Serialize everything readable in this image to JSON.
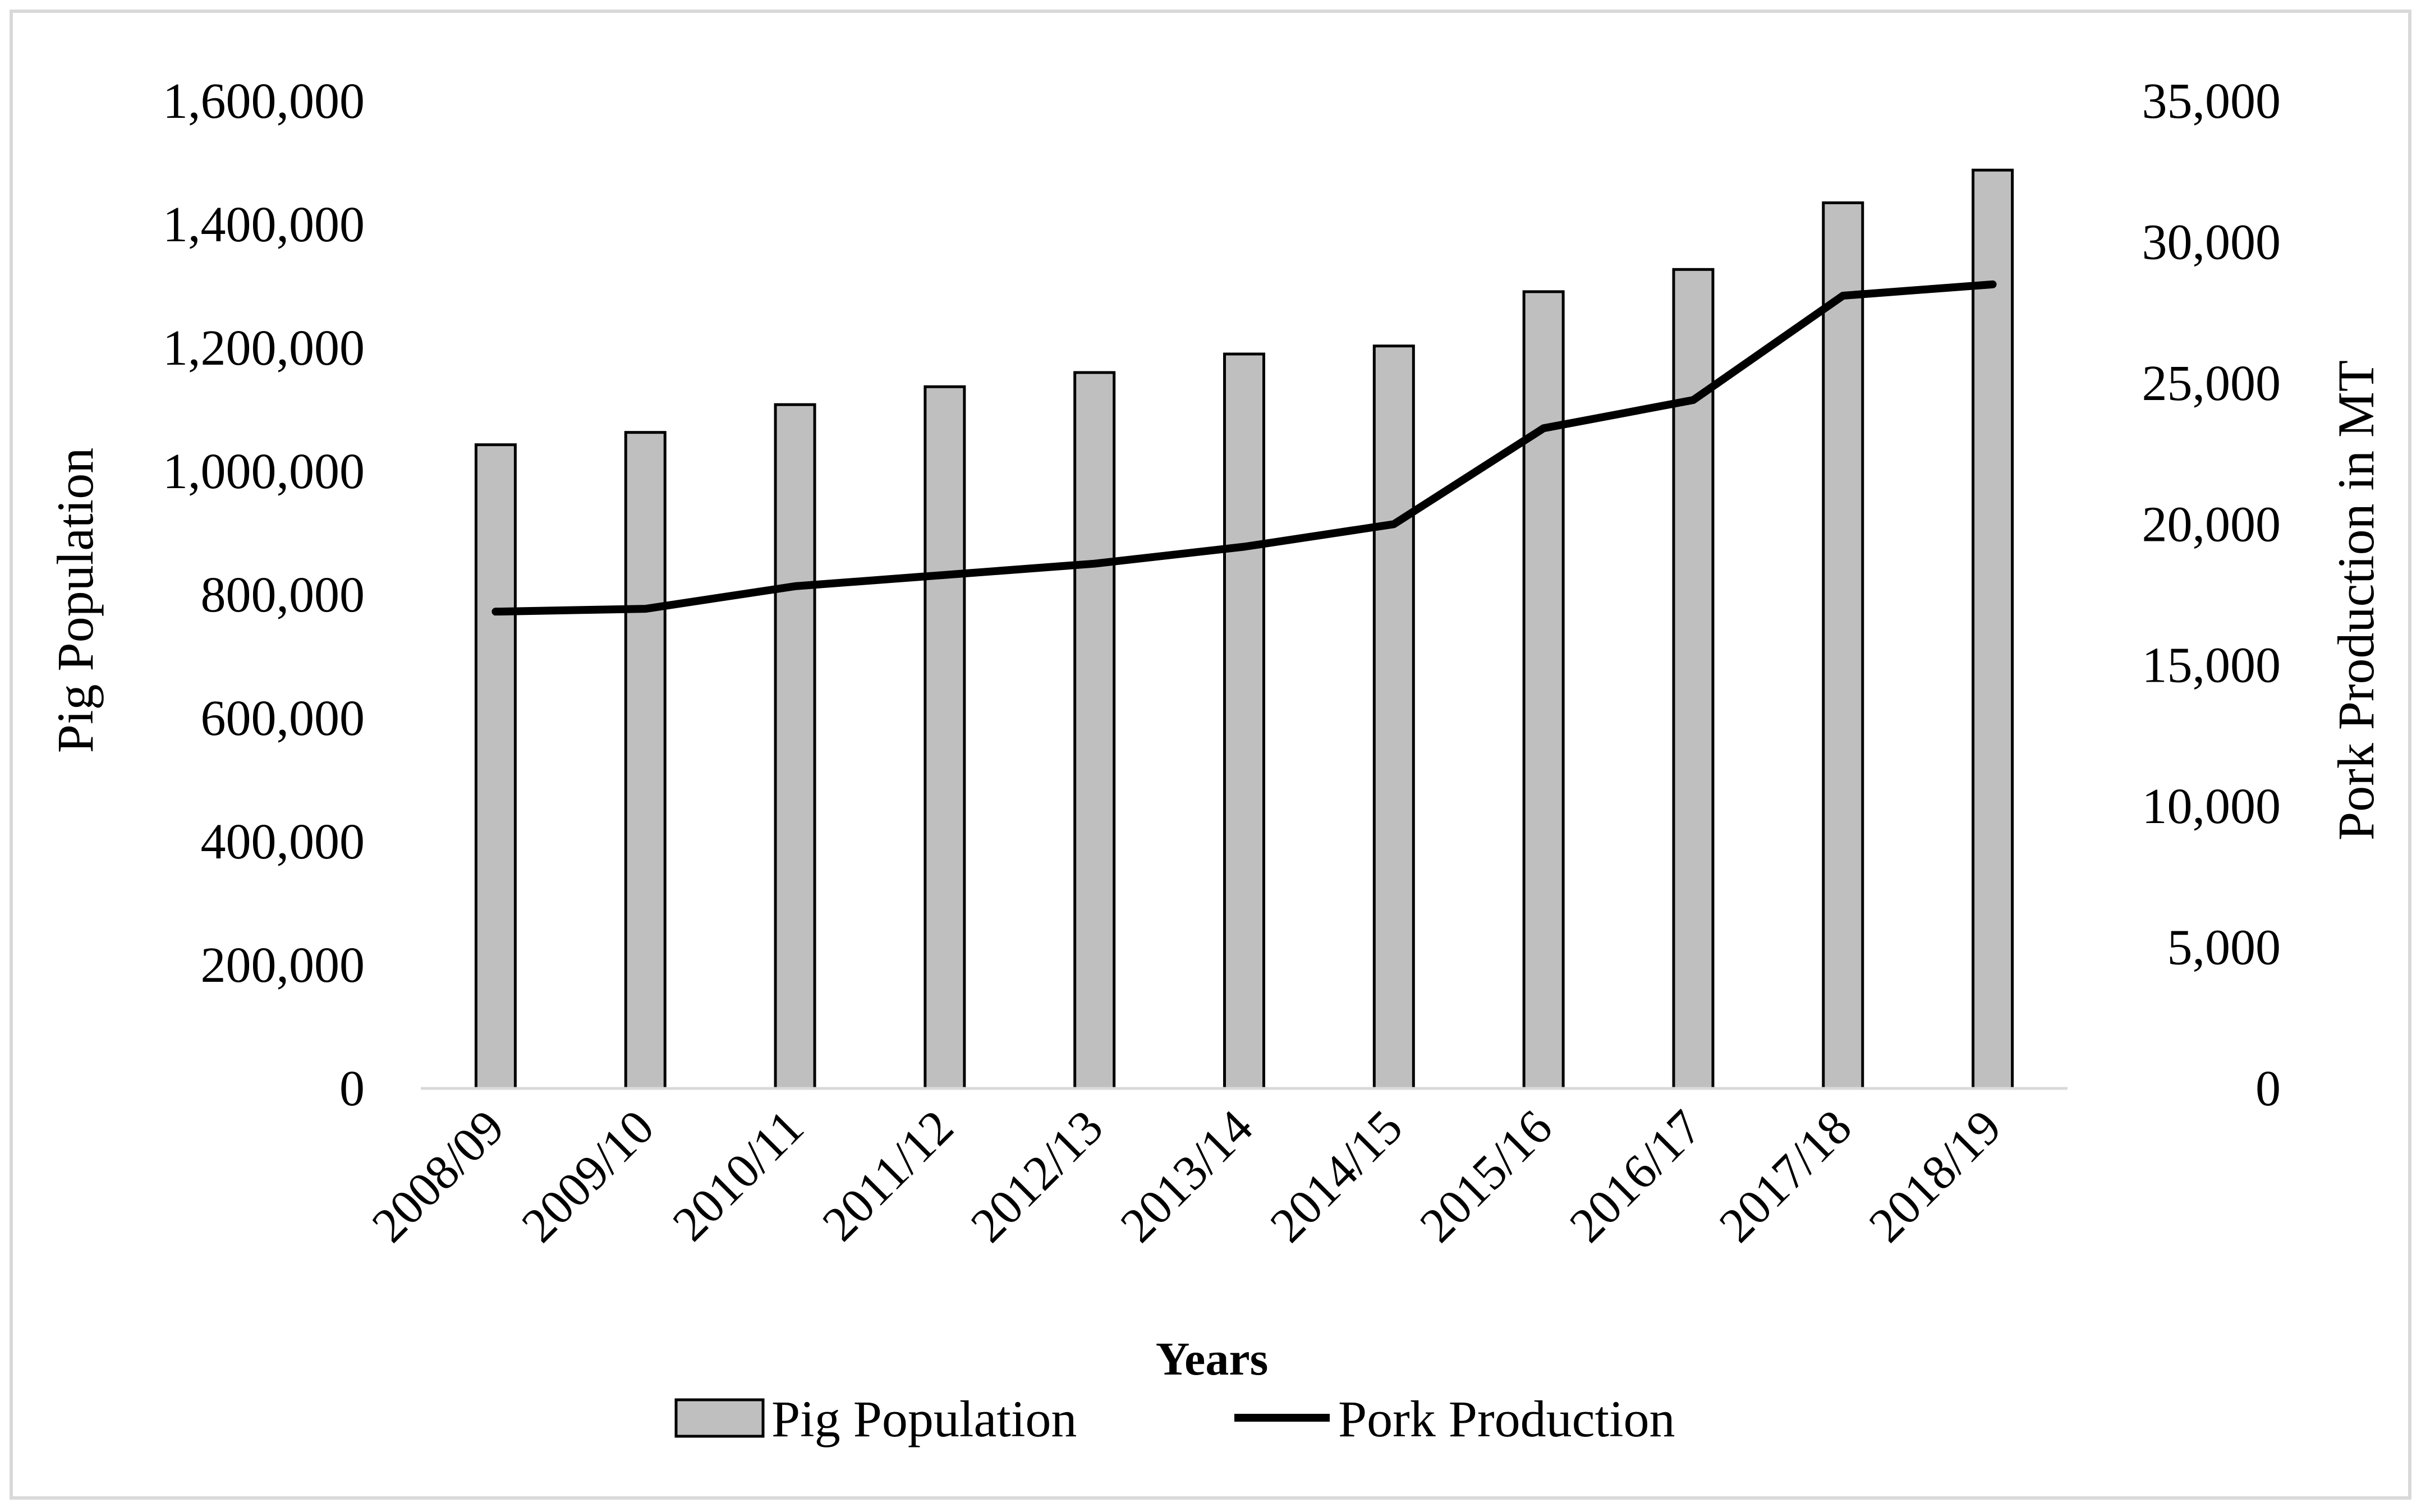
{
  "chart_data": {
    "type": "bar+line",
    "title": "",
    "xlabel": "Years",
    "ylabel_left": "Pig Population",
    "ylabel_right": "Pork Production in MT",
    "categories": [
      "2008/09",
      "2009/10",
      "2010/11",
      "2011/12",
      "2012/13",
      "2013/14",
      "2014/15",
      "2015/16",
      "2016/17",
      "2017/18",
      "2018/19"
    ],
    "series": [
      {
        "name": "Pig Population",
        "type": "bar",
        "axis": "left",
        "values": [
          1043000,
          1063000,
          1108000,
          1137000,
          1160000,
          1190000,
          1203000,
          1291000,
          1327000,
          1435000,
          1488000
        ]
      },
      {
        "name": "Pork Production",
        "type": "line",
        "axis": "right",
        "values": [
          16900,
          17000,
          17800,
          18200,
          18600,
          19200,
          20000,
          23400,
          24400,
          28100,
          28500
        ]
      }
    ],
    "ylim_left": [
      0,
      1600000
    ],
    "ylim_right": [
      0,
      35000
    ],
    "yticks_left": [
      "0",
      "200,000",
      "400,000",
      "600,000",
      "800,000",
      "1,000,000",
      "1,200,000",
      "1,400,000",
      "1,600,000"
    ],
    "yticks_right": [
      "0",
      "5,000",
      "10,000",
      "15,000",
      "20,000",
      "25,000",
      "30,000",
      "35,000"
    ],
    "grid": false,
    "legend": {
      "position": "bottom",
      "entries": [
        "Pig Population",
        "Pork Production"
      ]
    },
    "colors": {
      "bar_fill": "#bfbfbf",
      "bar_stroke": "#000000",
      "line": "#000000",
      "axis": "#d9d9d9",
      "frame": "#d9d9d9"
    }
  }
}
